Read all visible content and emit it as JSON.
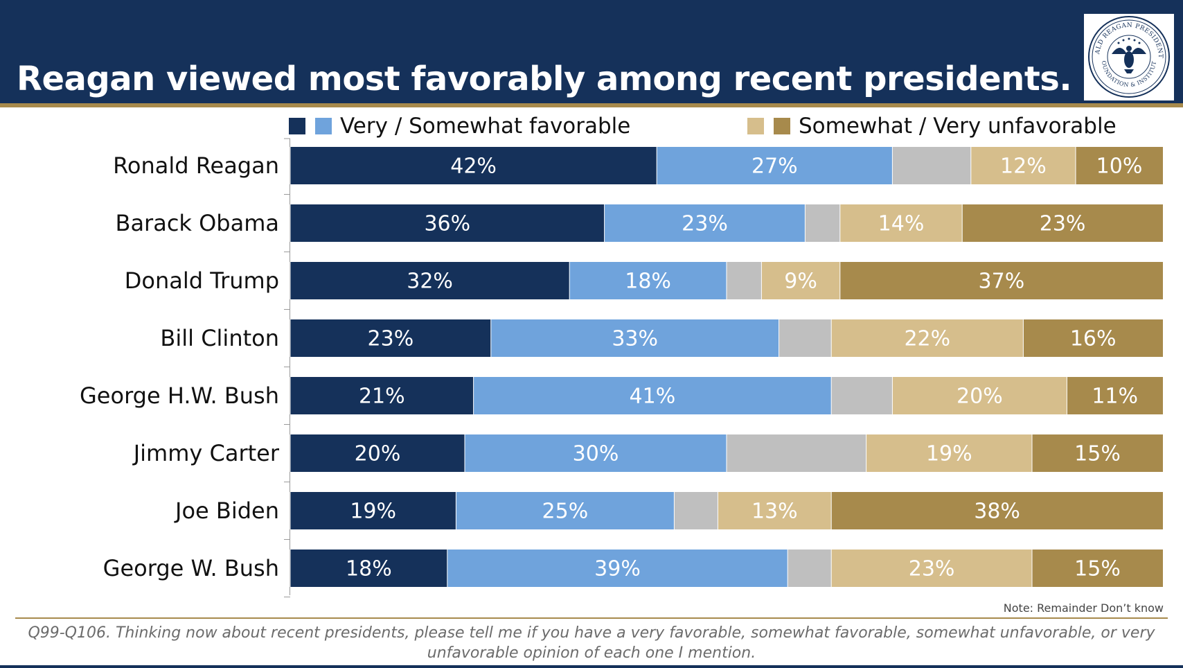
{
  "title": "Reagan viewed most favorably among recent presidents.",
  "seal_text": {
    "top": "RONALD REAGAN PRESIDENTIAL",
    "bottom": "FOUNDATION & INSTITUTE"
  },
  "legend": {
    "favorable_label": "Very / Somewhat favorable",
    "unfavorable_label": "Somewhat / Very unfavorable"
  },
  "colors": {
    "header": "#15315a",
    "gold_rule": "#a78a4c",
    "very_favorable": "#15315a",
    "somewhat_favorable": "#6fa3dc",
    "dont_know": "#bfbfbf",
    "somewhat_unfavorable": "#d6be8c",
    "very_unfavorable": "#a78a4c"
  },
  "chart_data": {
    "type": "bar",
    "orientation": "horizontal",
    "stacked": true,
    "title": "Reagan viewed most favorably among recent presidents.",
    "categories": [
      "Ronald Reagan",
      "Barack Obama",
      "Donald Trump",
      "Bill Clinton",
      "George H.W. Bush",
      "Jimmy Carter",
      "Joe Biden",
      "George W. Bush"
    ],
    "series": [
      {
        "name": "Very favorable",
        "color": "#15315a",
        "values": [
          42,
          36,
          32,
          23,
          21,
          20,
          19,
          18
        ]
      },
      {
        "name": "Somewhat favorable",
        "color": "#6fa3dc",
        "values": [
          27,
          23,
          18,
          33,
          41,
          30,
          25,
          39
        ]
      },
      {
        "name": "Don't know",
        "color": "#bfbfbf",
        "values": [
          9,
          4,
          4,
          6,
          7,
          16,
          5,
          5
        ],
        "labeled": false
      },
      {
        "name": "Somewhat unfavorable",
        "color": "#d6be8c",
        "values": [
          12,
          14,
          9,
          22,
          20,
          19,
          13,
          23
        ]
      },
      {
        "name": "Very unfavorable",
        "color": "#a78a4c",
        "values": [
          10,
          23,
          37,
          16,
          11,
          15,
          38,
          15
        ]
      }
    ],
    "value_suffix": "%",
    "xlim": [
      0,
      100
    ],
    "xlabel": "",
    "ylabel": "",
    "grid": false,
    "legend_position": "top"
  },
  "note": "Note: Remainder Don’t know",
  "question": "Q99-Q106. Thinking now about recent presidents, please tell me if you have a very favorable, somewhat favorable, somewhat unfavorable, or very unfavorable opinion of each one I mention."
}
